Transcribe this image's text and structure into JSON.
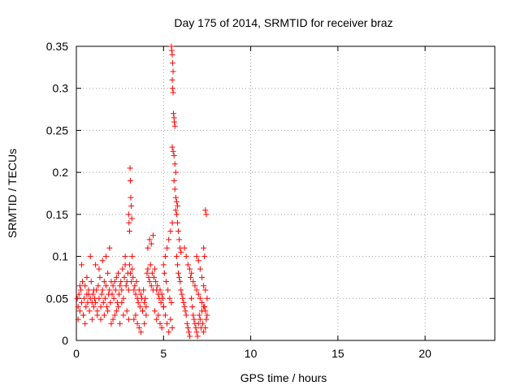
{
  "chart_data": {
    "type": "scatter",
    "title": "Day 175 of 2014, SRMTID for receiver braz",
    "xlabel": "GPS time / hours",
    "ylabel": "SRMTID / TECUs",
    "xlim": [
      0,
      24
    ],
    "ylim": [
      0,
      0.35
    ],
    "x_ticks": [
      0,
      5,
      10,
      15,
      20
    ],
    "x_tick_labels": [
      "0",
      "5",
      "10",
      "15",
      "20"
    ],
    "y_ticks": [
      0,
      0.05,
      0.1,
      0.15,
      0.2,
      0.25,
      0.3,
      0.35
    ],
    "y_tick_labels": [
      "0",
      "0.05",
      "0.1",
      "0.15",
      "0.2",
      "0.25",
      "0.3",
      "0.35"
    ],
    "grid": true,
    "marker": "+",
    "series": [
      {
        "name": "SRMTID",
        "color": "#ff0000",
        "x": [
          0.05,
          0.1,
          0.15,
          0.2,
          0.25,
          0.3,
          0.35,
          0.4,
          0.45,
          0.5,
          0.55,
          0.6,
          0.65,
          0.7,
          0.75,
          0.8,
          0.85,
          0.9,
          0.95,
          1.0,
          0.1,
          0.2,
          0.3,
          0.4,
          0.5,
          0.6,
          0.7,
          0.8,
          0.9,
          1.0,
          1.05,
          1.1,
          1.15,
          1.2,
          1.25,
          1.3,
          1.35,
          1.4,
          1.45,
          1.5,
          1.55,
          1.6,
          1.65,
          1.7,
          1.75,
          1.8,
          1.85,
          1.9,
          1.95,
          2.0,
          1.1,
          1.2,
          1.3,
          1.4,
          1.5,
          1.6,
          1.7,
          1.8,
          1.9,
          2.0,
          2.05,
          2.1,
          2.15,
          2.2,
          2.25,
          2.3,
          2.35,
          2.4,
          2.45,
          2.5,
          2.55,
          2.6,
          2.65,
          2.7,
          2.75,
          2.8,
          2.85,
          2.9,
          2.95,
          3.0,
          2.1,
          2.2,
          2.3,
          2.4,
          2.5,
          2.6,
          2.7,
          2.8,
          2.9,
          3.0,
          3.0,
          3.02,
          3.05,
          3.08,
          3.1,
          3.12,
          3.15,
          3.18,
          3.2,
          3.05,
          3.1,
          3.15,
          3.2,
          3.25,
          3.3,
          3.35,
          3.4,
          3.45,
          3.5,
          3.55,
          3.6,
          3.65,
          3.7,
          3.75,
          3.8,
          3.85,
          3.9,
          3.95,
          4.0,
          3.3,
          3.4,
          3.5,
          3.6,
          3.7,
          3.8,
          3.9,
          4.0,
          4.05,
          4.1,
          4.15,
          4.2,
          4.25,
          4.3,
          4.35,
          4.4,
          4.45,
          4.5,
          4.55,
          4.6,
          4.65,
          4.7,
          4.75,
          4.8,
          4.85,
          4.9,
          4.95,
          5.0,
          4.1,
          4.2,
          4.3,
          4.4,
          4.5,
          4.6,
          4.7,
          4.8,
          4.9,
          5.0,
          5.0,
          5.05,
          5.1,
          5.15,
          5.2,
          5.25,
          5.3,
          5.35,
          5.4,
          5.45,
          5.5,
          5.1,
          5.2,
          5.3,
          5.4,
          5.5,
          5.45,
          5.47,
          5.5,
          5.52,
          5.55,
          5.5,
          5.52,
          5.55,
          5.57,
          5.6,
          5.62,
          5.65,
          5.5,
          5.55,
          5.6,
          5.65,
          5.7,
          5.6,
          5.65,
          5.7,
          5.75,
          5.8,
          5.7,
          5.75,
          5.8,
          5.85,
          5.9,
          5.95,
          6.0,
          5.75,
          5.8,
          5.85,
          5.9,
          5.95,
          6.0,
          6.05,
          6.1,
          6.15,
          6.2,
          6.25,
          6.3,
          6.35,
          6.4,
          6.45,
          6.5,
          6.2,
          6.3,
          6.4,
          6.5,
          6.55,
          6.6,
          6.65,
          6.7,
          6.75,
          6.8,
          6.85,
          6.9,
          6.95,
          7.0,
          7.05,
          7.1,
          7.15,
          7.2,
          7.25,
          7.3,
          7.35,
          7.4,
          7.45,
          7.5,
          6.6,
          6.7,
          6.8,
          6.9,
          7.0,
          7.1,
          7.2,
          7.3,
          7.4,
          7.5,
          7.3,
          7.35,
          7.4,
          7.45,
          6.9,
          7.0,
          7.1,
          7.2,
          7.3,
          7.4
        ],
        "y": [
          0.05,
          0.04,
          0.055,
          0.035,
          0.06,
          0.045,
          0.07,
          0.03,
          0.05,
          0.065,
          0.04,
          0.055,
          0.045,
          0.06,
          0.035,
          0.05,
          0.07,
          0.045,
          0.055,
          0.04,
          0.025,
          0.065,
          0.09,
          0.03,
          0.02,
          0.075,
          0.055,
          0.1,
          0.025,
          0.06,
          0.05,
          0.045,
          0.06,
          0.035,
          0.065,
          0.05,
          0.075,
          0.04,
          0.055,
          0.06,
          0.045,
          0.07,
          0.05,
          0.065,
          0.04,
          0.08,
          0.055,
          0.06,
          0.045,
          0.07,
          0.09,
          0.03,
          0.085,
          0.025,
          0.095,
          0.03,
          0.1,
          0.035,
          0.11,
          0.02,
          0.055,
          0.065,
          0.05,
          0.07,
          0.06,
          0.075,
          0.045,
          0.08,
          0.055,
          0.065,
          0.07,
          0.06,
          0.085,
          0.05,
          0.075,
          0.09,
          0.065,
          0.07,
          0.08,
          0.06,
          0.025,
          0.03,
          0.035,
          0.04,
          0.02,
          0.045,
          0.03,
          0.1,
          0.035,
          0.025,
          0.15,
          0.14,
          0.13,
          0.205,
          0.19,
          0.17,
          0.16,
          0.145,
          0.1,
          0.09,
          0.08,
          0.07,
          0.085,
          0.075,
          0.06,
          0.065,
          0.055,
          0.07,
          0.05,
          0.045,
          0.06,
          0.04,
          0.055,
          0.05,
          0.035,
          0.06,
          0.045,
          0.05,
          0.04,
          0.025,
          0.03,
          0.02,
          0.015,
          0.01,
          0.035,
          0.02,
          0.03,
          0.08,
          0.085,
          0.075,
          0.07,
          0.09,
          0.065,
          0.08,
          0.06,
          0.075,
          0.085,
          0.07,
          0.06,
          0.065,
          0.055,
          0.05,
          0.06,
          0.045,
          0.055,
          0.05,
          0.04,
          0.11,
          0.12,
          0.115,
          0.125,
          0.035,
          0.025,
          0.03,
          0.02,
          0.015,
          0.04,
          0.09,
          0.08,
          0.1,
          0.07,
          0.11,
          0.06,
          0.12,
          0.05,
          0.13,
          0.045,
          0.14,
          0.03,
          0.02,
          0.01,
          0.025,
          0.015,
          0.35,
          0.345,
          0.34,
          0.33,
          0.32,
          0.31,
          0.3,
          0.295,
          0.27,
          0.265,
          0.26,
          0.255,
          0.23,
          0.225,
          0.22,
          0.21,
          0.2,
          0.19,
          0.18,
          0.17,
          0.165,
          0.16,
          0.155,
          0.15,
          0.14,
          0.13,
          0.12,
          0.11,
          0.105,
          0.1,
          0.09,
          0.08,
          0.075,
          0.07,
          0.06,
          0.055,
          0.05,
          0.045,
          0.04,
          0.035,
          0.03,
          0.02,
          0.015,
          0.01,
          0.005,
          0.11,
          0.1,
          0.09,
          0.085,
          0.075,
          0.05,
          0.04,
          0.03,
          0.025,
          0.02,
          0.015,
          0.01,
          0.005,
          0.02,
          0.03,
          0.025,
          0.015,
          0.035,
          0.02,
          0.01,
          0.04,
          0.015,
          0.025,
          0.05,
          0.08,
          0.07,
          0.065,
          0.06,
          0.055,
          0.05,
          0.045,
          0.04,
          0.035,
          0.03,
          0.11,
          0.1,
          0.155,
          0.15,
          0.1,
          0.095,
          0.085,
          0.075,
          0.065,
          0.06
        ]
      }
    ]
  }
}
